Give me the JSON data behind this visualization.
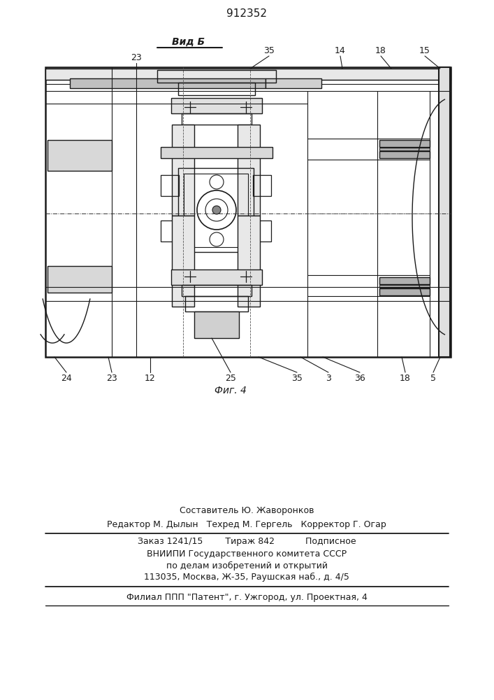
{
  "title": "912352",
  "view_label": "Вид Б",
  "fig_label": "Фиг. 4",
  "bg_color": "#ffffff",
  "line_color": "#1a1a1a",
  "footer": {
    "line1": "Составитель Ю. Жаворонков",
    "line2": "Редактор М. Дылын   Техред М. Гергель   Корректор Г. Огар",
    "line3": "Заказ 1241/15        Тираж 842           Подписное",
    "line4": "ВНИИПИ Государственного комитета СССР",
    "line5": "по делам изобретений и открытий",
    "line6": "113035, Москва, Ж-35, Раушская наб., д. 4/5",
    "line7": "Филиал ППП \"Патент\", г. Ужгород, ул. Проектная, 4"
  }
}
